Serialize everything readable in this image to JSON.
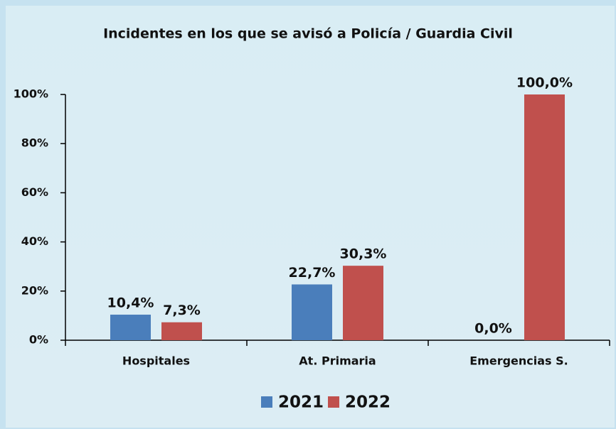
{
  "chart_data": {
    "type": "bar",
    "title": "Incidentes en los que se avisó a Policía / Guardia Civil",
    "categories": [
      "Hospitales",
      "At. Primaria",
      "Emergencias S."
    ],
    "series": [
      {
        "name": "2021",
        "color": "#4a7ebb",
        "values": [
          10.4,
          22.7,
          0.0
        ],
        "value_labels": [
          "10,4%",
          "22,7%",
          "0,0%"
        ]
      },
      {
        "name": "2022",
        "color": "#c0504d",
        "values": [
          7.3,
          30.3,
          100.0
        ],
        "value_labels": [
          "7,3%",
          "30,3%",
          "100,0%"
        ]
      }
    ],
    "ylim": [
      0,
      100
    ],
    "yticks": [
      {
        "value": 0,
        "label": "0%"
      },
      {
        "value": 20,
        "label": "20%"
      },
      {
        "value": 40,
        "label": "40%"
      },
      {
        "value": 60,
        "label": "60%"
      },
      {
        "value": 80,
        "label": "80%"
      },
      {
        "value": 100,
        "label": "100%"
      }
    ],
    "legend": "bottom"
  }
}
